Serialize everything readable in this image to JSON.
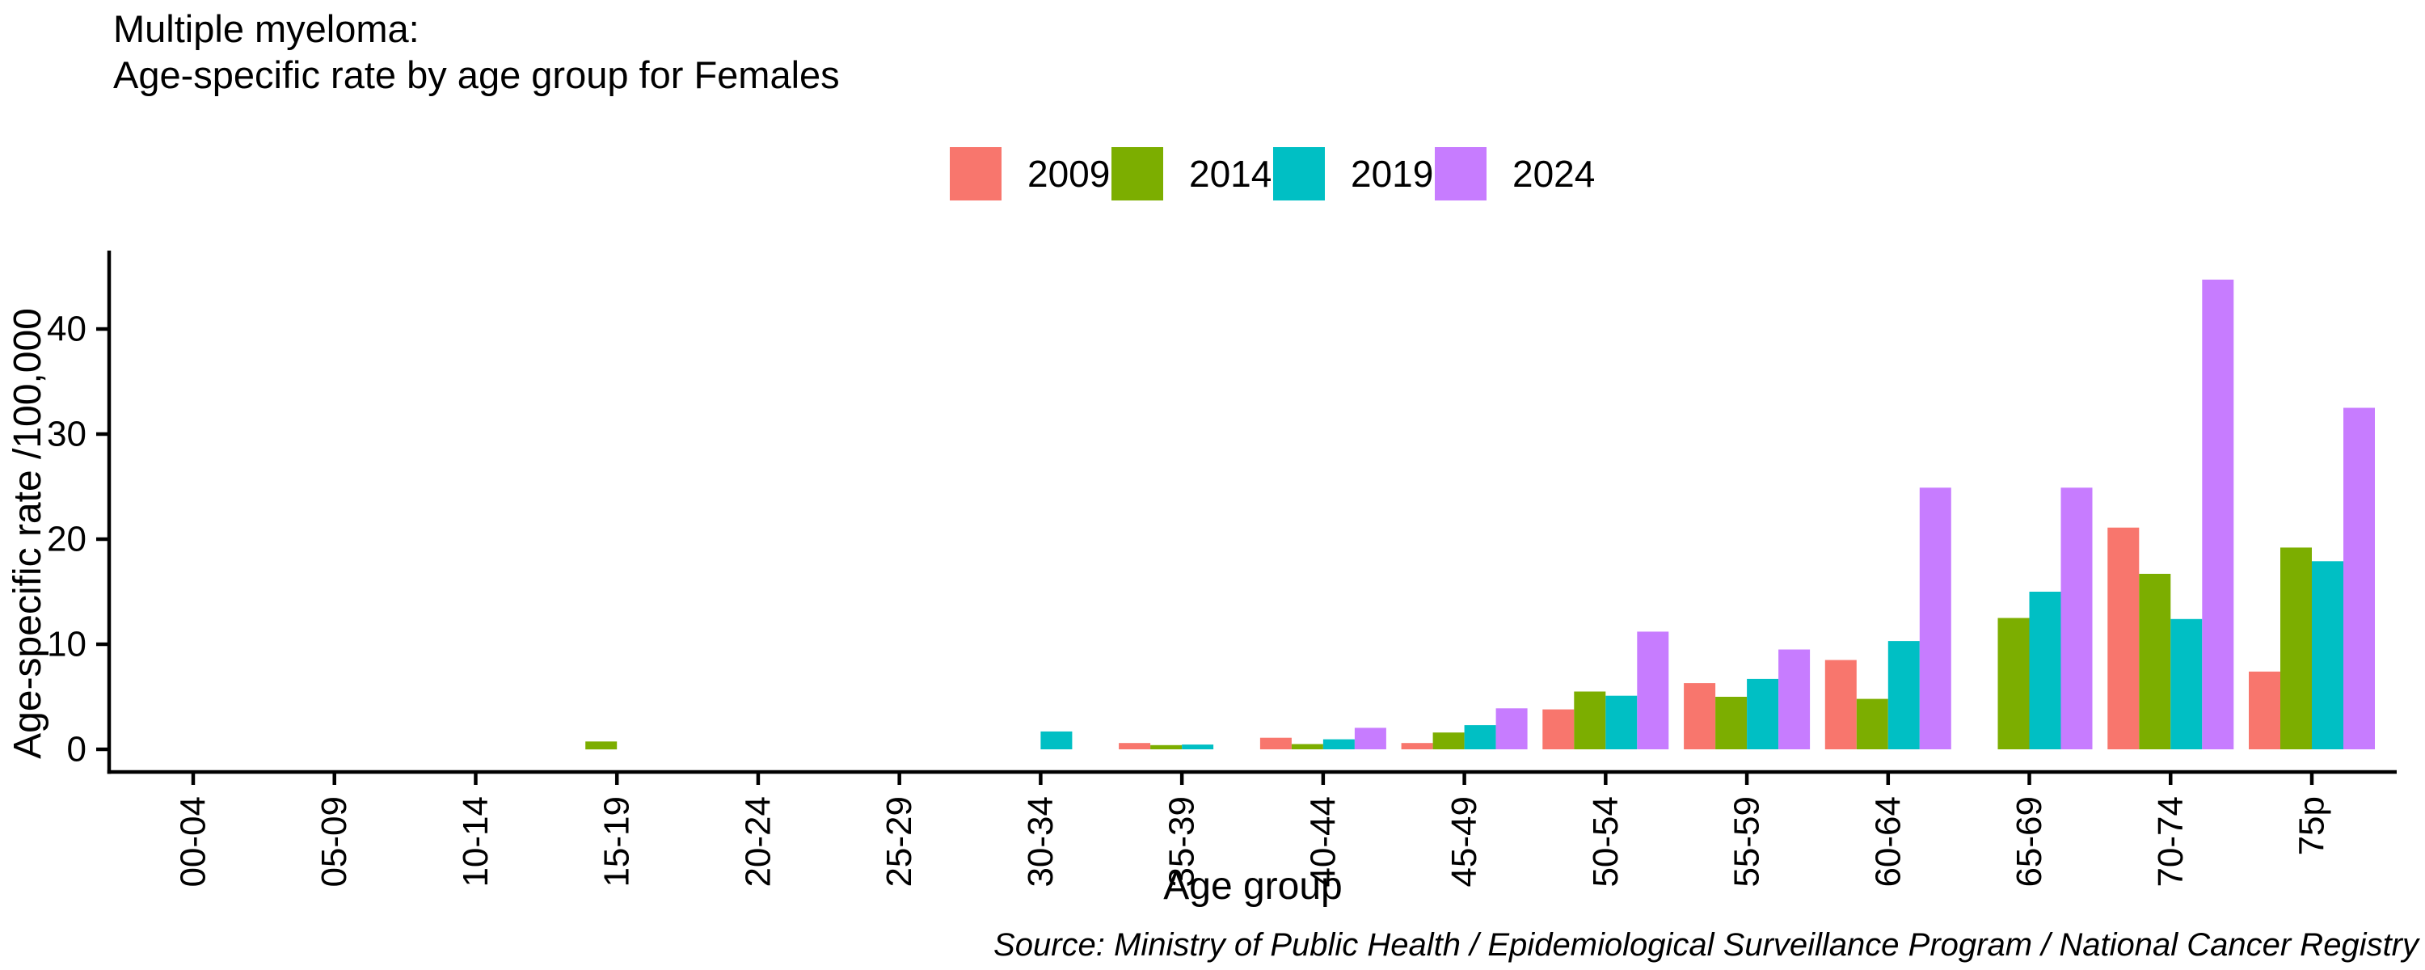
{
  "chart_data": {
    "type": "bar",
    "title_line1": "Multiple myeloma:",
    "title_line2": "Age-specific rate by age group for Females",
    "xlabel": "Age group",
    "ylabel": "Age-specific rate /100,000",
    "source": "Source: Ministry of Public Health / Epidemiological Surveillance Program / National Cancer Registry",
    "categories": [
      "00-04",
      "05-09",
      "10-14",
      "15-19",
      "20-24",
      "25-29",
      "30-34",
      "35-39",
      "40-44",
      "45-49",
      "50-54",
      "55-59",
      "60-64",
      "65-69",
      "70-74",
      "75p"
    ],
    "series": [
      {
        "name": "2009",
        "color": "#F8766D",
        "values": [
          0,
          0,
          0,
          0,
          0,
          0,
          0,
          0.6,
          1.1,
          0.6,
          3.8,
          6.3,
          8.5,
          0,
          21.1,
          7.4
        ]
      },
      {
        "name": "2014",
        "color": "#7CAE00",
        "values": [
          0,
          0,
          0,
          0.75,
          0,
          0,
          0,
          0.4,
          0.5,
          1.6,
          5.5,
          5.0,
          4.8,
          12.5,
          16.7,
          19.2
        ]
      },
      {
        "name": "2019",
        "color": "#00BFC4",
        "values": [
          0,
          0,
          0,
          0,
          0,
          0,
          1.7,
          0.45,
          0.95,
          2.3,
          5.1,
          6.7,
          10.3,
          15.0,
          12.4,
          17.9
        ]
      },
      {
        "name": "2024",
        "color": "#C77CFF",
        "values": [
          0,
          0,
          0,
          0,
          0,
          0,
          0,
          0,
          2.05,
          3.9,
          11.2,
          9.5,
          24.9,
          24.9,
          44.7,
          32.5
        ]
      }
    ],
    "yticks": [
      0,
      10,
      20,
      30,
      40
    ],
    "ylim": [
      0,
      46.5
    ],
    "legend_position": "top-center",
    "grid": false,
    "bar_layout": "dodge",
    "axis_color": "#000000",
    "text_color": "#000000",
    "background_color": "#FFFFFF"
  }
}
